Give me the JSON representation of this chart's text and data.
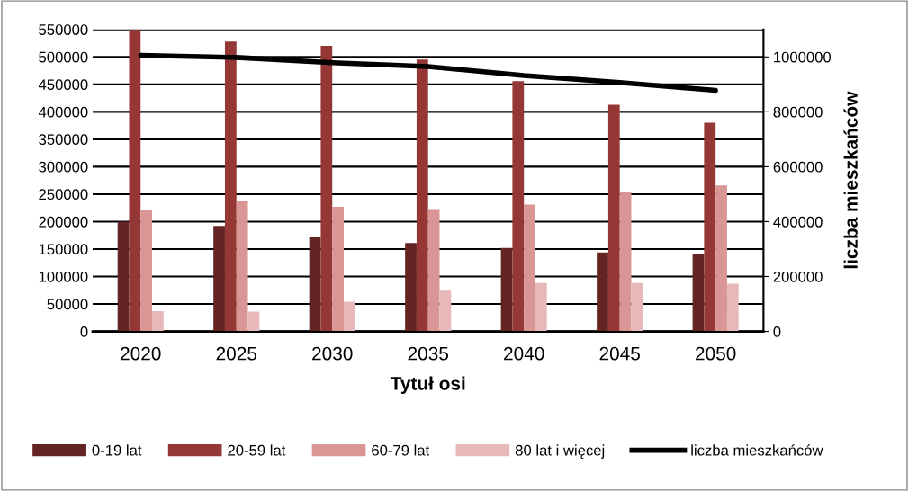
{
  "chart_data": {
    "type": "bar",
    "categories": [
      "2020",
      "2025",
      "2030",
      "2035",
      "2040",
      "2045",
      "2050"
    ],
    "xlabel": "Tytuł osi",
    "y2label": "liczba mieszkańców",
    "series": [
      {
        "name": "0-19 lat",
        "color": "#632523",
        "values": [
          200000,
          192000,
          173000,
          161000,
          152000,
          144000,
          140000
        ]
      },
      {
        "name": "20-59 lat",
        "color": "#953735",
        "values": [
          549000,
          528000,
          520000,
          495000,
          456000,
          413000,
          380000
        ]
      },
      {
        "name": "60-79 lat",
        "color": "#d99694",
        "values": [
          222000,
          238000,
          227000,
          223000,
          231000,
          254000,
          266000
        ]
      },
      {
        "name": "80 lat i więcej",
        "color": "#e6b9b8",
        "values": [
          37000,
          36000,
          54000,
          74000,
          88000,
          88000,
          87000
        ]
      },
      {
        "name": "liczba mieszkańców",
        "type": "line",
        "axis": "y2",
        "color": "#000000",
        "values": [
          1006000,
          998000,
          979000,
          965000,
          932000,
          907000,
          878000
        ]
      }
    ],
    "ylim": [
      0,
      550000
    ],
    "yticks": [
      0,
      50000,
      100000,
      150000,
      200000,
      250000,
      300000,
      350000,
      400000,
      450000,
      500000,
      550000
    ],
    "y2lim": [
      0,
      1100000
    ],
    "y2ticks": [
      0,
      200000,
      400000,
      600000,
      800000,
      1000000
    ],
    "grid": "y",
    "legend": "bottom"
  }
}
